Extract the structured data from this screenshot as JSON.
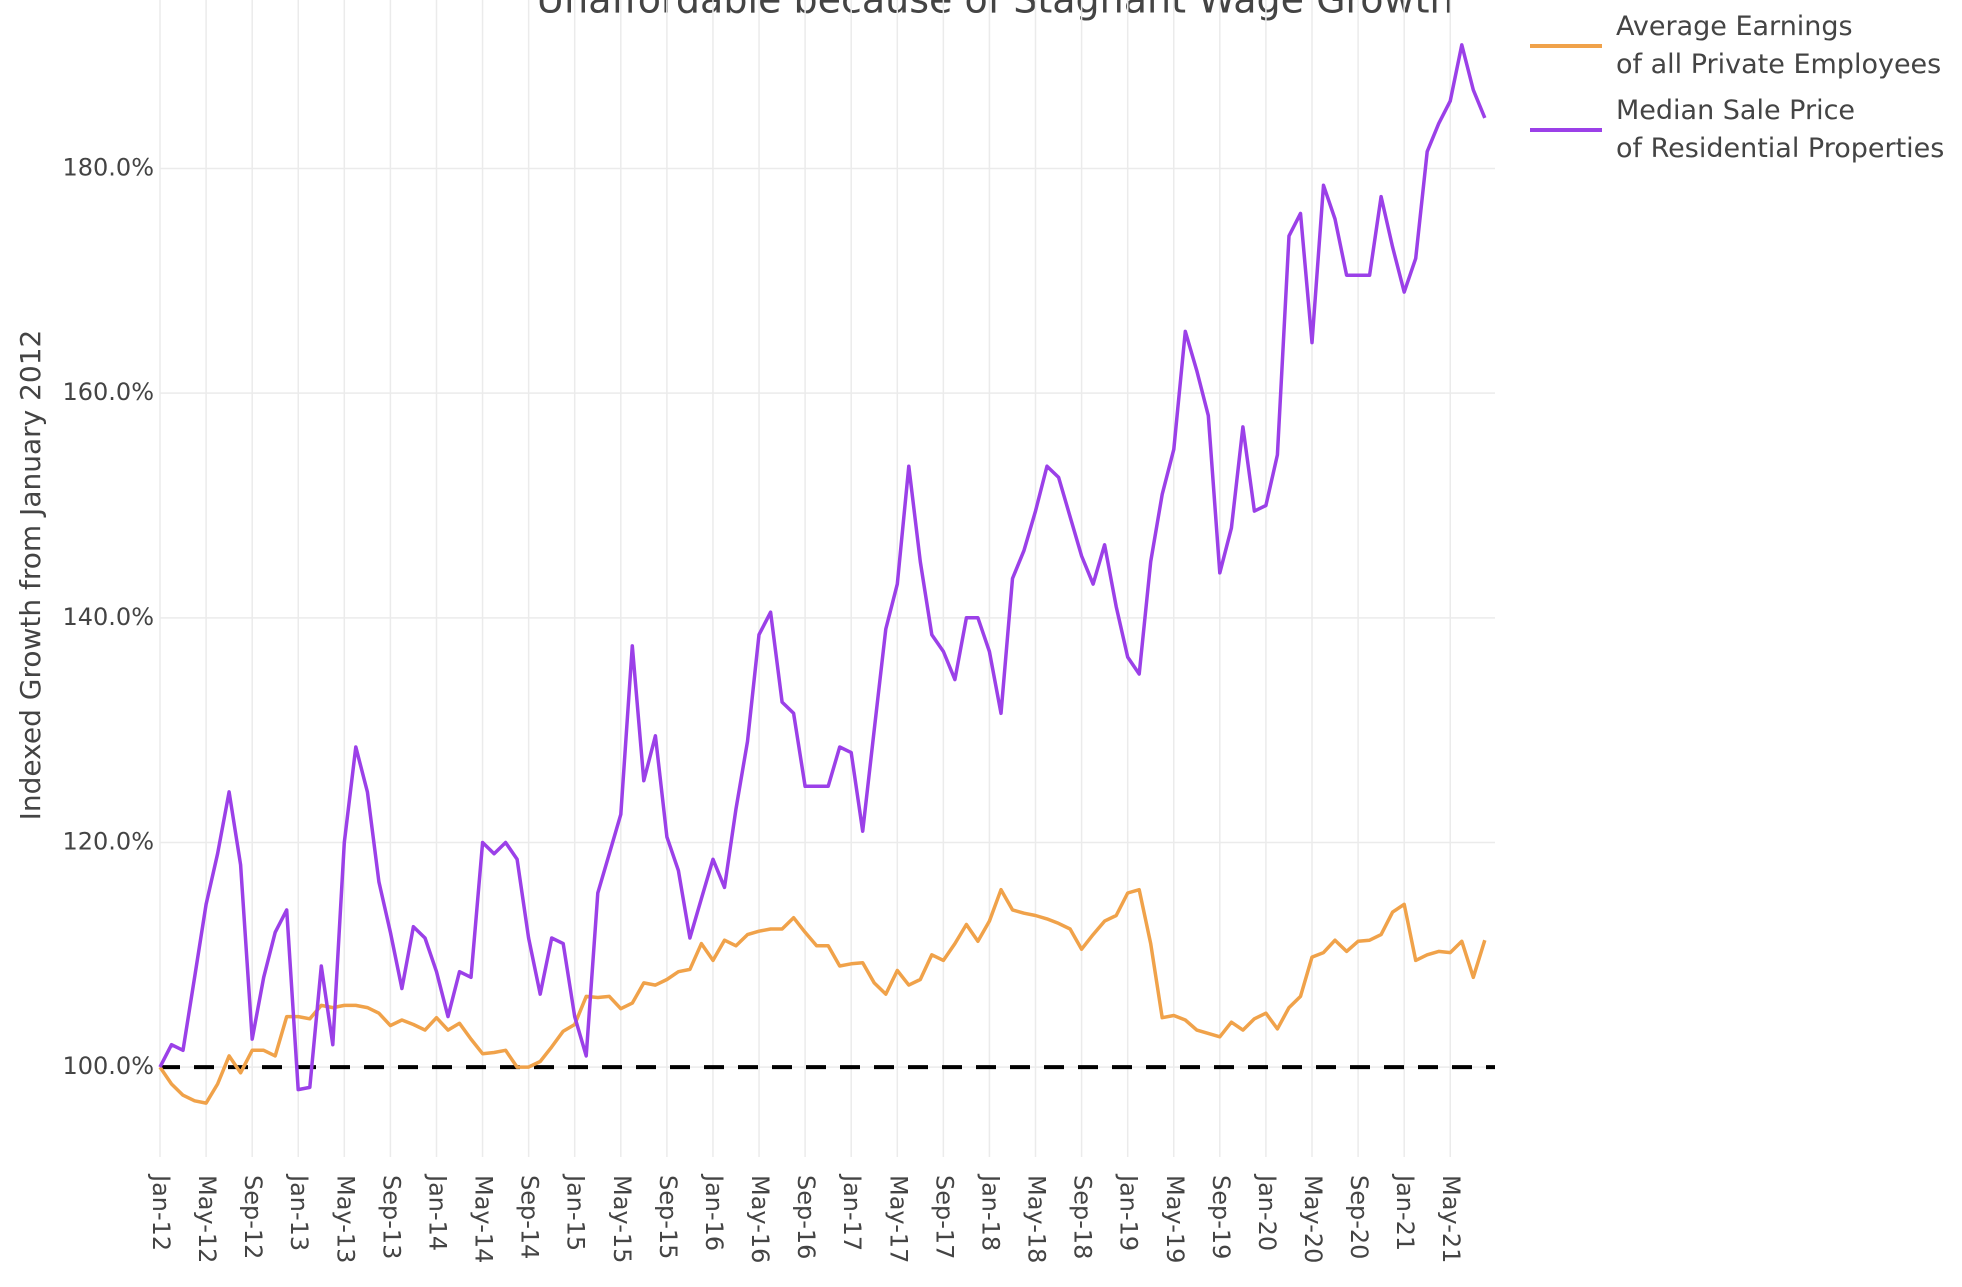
{
  "chart_data": {
    "type": "line",
    "title": "Unaffordable because of Stagnant Wage Growth",
    "ylabel": "Indexed Growth from January 2012",
    "categories": [
      "Jan-12",
      null,
      null,
      null,
      "May-12",
      null,
      null,
      null,
      "Sep-12",
      null,
      null,
      null,
      "Jan-13",
      null,
      null,
      null,
      "May-13",
      null,
      null,
      null,
      "Sep-13",
      null,
      null,
      null,
      "Jan-14",
      null,
      null,
      null,
      "May-14",
      null,
      null,
      null,
      "Sep-14",
      null,
      null,
      null,
      "Jan-15",
      null,
      null,
      null,
      "May-15",
      null,
      null,
      null,
      "Sep-15",
      null,
      null,
      null,
      "Jan-16",
      null,
      null,
      null,
      "May-16",
      null,
      null,
      null,
      "Sep-16",
      null,
      null,
      null,
      "Jan-17",
      null,
      null,
      null,
      "May-17",
      null,
      null,
      null,
      "Sep-17",
      null,
      null,
      null,
      "Jan-18",
      null,
      null,
      null,
      "May-18",
      null,
      null,
      null,
      "Sep-18",
      null,
      null,
      null,
      "Jan-19",
      null,
      null,
      null,
      "May-19",
      null,
      null,
      null,
      "Sep-19",
      null,
      null,
      null,
      "Jan-20",
      null,
      null,
      null,
      "May-20",
      null,
      null,
      null,
      "Sep-20",
      null,
      null,
      null,
      "Jan-21",
      null,
      null,
      null,
      "May-21",
      null,
      null,
      null
    ],
    "series": [
      {
        "name": "Average Earnings\nof all Private Employees",
        "color": "#f0a24a",
        "values": [
          100,
          98.5,
          97.5,
          97,
          96.8,
          98.5,
          101,
          99.5,
          101.5,
          101.5,
          101,
          104.5,
          104.5,
          104.3,
          105.5,
          105.3,
          105.5,
          105.5,
          105.3,
          104.8,
          103.7,
          104.2,
          103.8,
          103.3,
          104.4,
          103.3,
          103.9,
          102.5,
          101.2,
          101.3,
          101.5,
          100,
          100,
          100.5,
          101.8,
          103.2,
          103.8,
          106.3,
          106.2,
          106.3,
          105.2,
          105.7,
          107.5,
          107.3,
          107.8,
          108.5,
          108.7,
          111,
          109.5,
          111.3,
          110.8,
          111.8,
          112.1,
          112.3,
          112.3,
          113.3,
          112,
          110.8,
          110.8,
          109,
          109.2,
          109.3,
          107.5,
          106.5,
          108.6,
          107.3,
          107.8,
          110,
          109.5,
          111,
          112.7,
          111.2,
          113,
          115.8,
          114,
          113.7,
          113.5,
          113.2,
          112.8,
          112.3,
          110.5,
          111.8,
          113,
          113.5,
          115.5,
          115.8,
          111,
          104.4,
          104.6,
          104.2,
          103.3,
          103,
          102.7,
          104,
          103.3,
          104.3,
          104.8,
          103.4,
          105.3,
          106.3,
          109.8,
          110.2,
          111.3,
          110.3,
          111.2,
          111.3,
          111.8,
          113.8,
          114.5,
          109.5,
          110,
          110.3,
          110.2,
          111.2,
          108,
          111.3
        ]
      },
      {
        "name": "Median Sale Price\nof Residential Properties",
        "color": "#9b40e8",
        "values": [
          100,
          102,
          101.5,
          108,
          114.5,
          119,
          124.5,
          118,
          102.5,
          108,
          112,
          114,
          98,
          98.2,
          109,
          102,
          120,
          128.5,
          124.5,
          116.5,
          112,
          107,
          112.5,
          111.5,
          108.5,
          104.5,
          108.5,
          108,
          120,
          119,
          120,
          118.5,
          111.5,
          106.5,
          111.5,
          111,
          104.5,
          101,
          115.5,
          119,
          122.5,
          137.5,
          125.5,
          129.5,
          120.5,
          117.5,
          111.5,
          115,
          118.5,
          116,
          123,
          129,
          138.5,
          140.5,
          132.5,
          131.5,
          125,
          125,
          125,
          128.5,
          128,
          121,
          130,
          139,
          143,
          153.5,
          145,
          138.5,
          137,
          134.5,
          140,
          140,
          137,
          131.5,
          143.5,
          146,
          149.5,
          153.5,
          152.5,
          149,
          145.5,
          143,
          146.5,
          141,
          136.5,
          135,
          145,
          151,
          155,
          165.5,
          162,
          158,
          144,
          148,
          157,
          149.5,
          150,
          154.5,
          174,
          176,
          164.5,
          178.5,
          175.5,
          170.5,
          170.5,
          170.5,
          177.5,
          173,
          169,
          172,
          181.5,
          184,
          186,
          191,
          187,
          184.5
        ]
      }
    ],
    "hline": 100,
    "ylim": [
      92,
      195
    ],
    "yticks": [
      {
        "value": 100,
        "label": "100.0%"
      },
      {
        "value": 120,
        "label": "120.0%"
      },
      {
        "value": 140,
        "label": "140.0%"
      },
      {
        "value": 160,
        "label": "160.0%"
      },
      {
        "value": 180,
        "label": "180.0%"
      }
    ],
    "grid": true
  }
}
